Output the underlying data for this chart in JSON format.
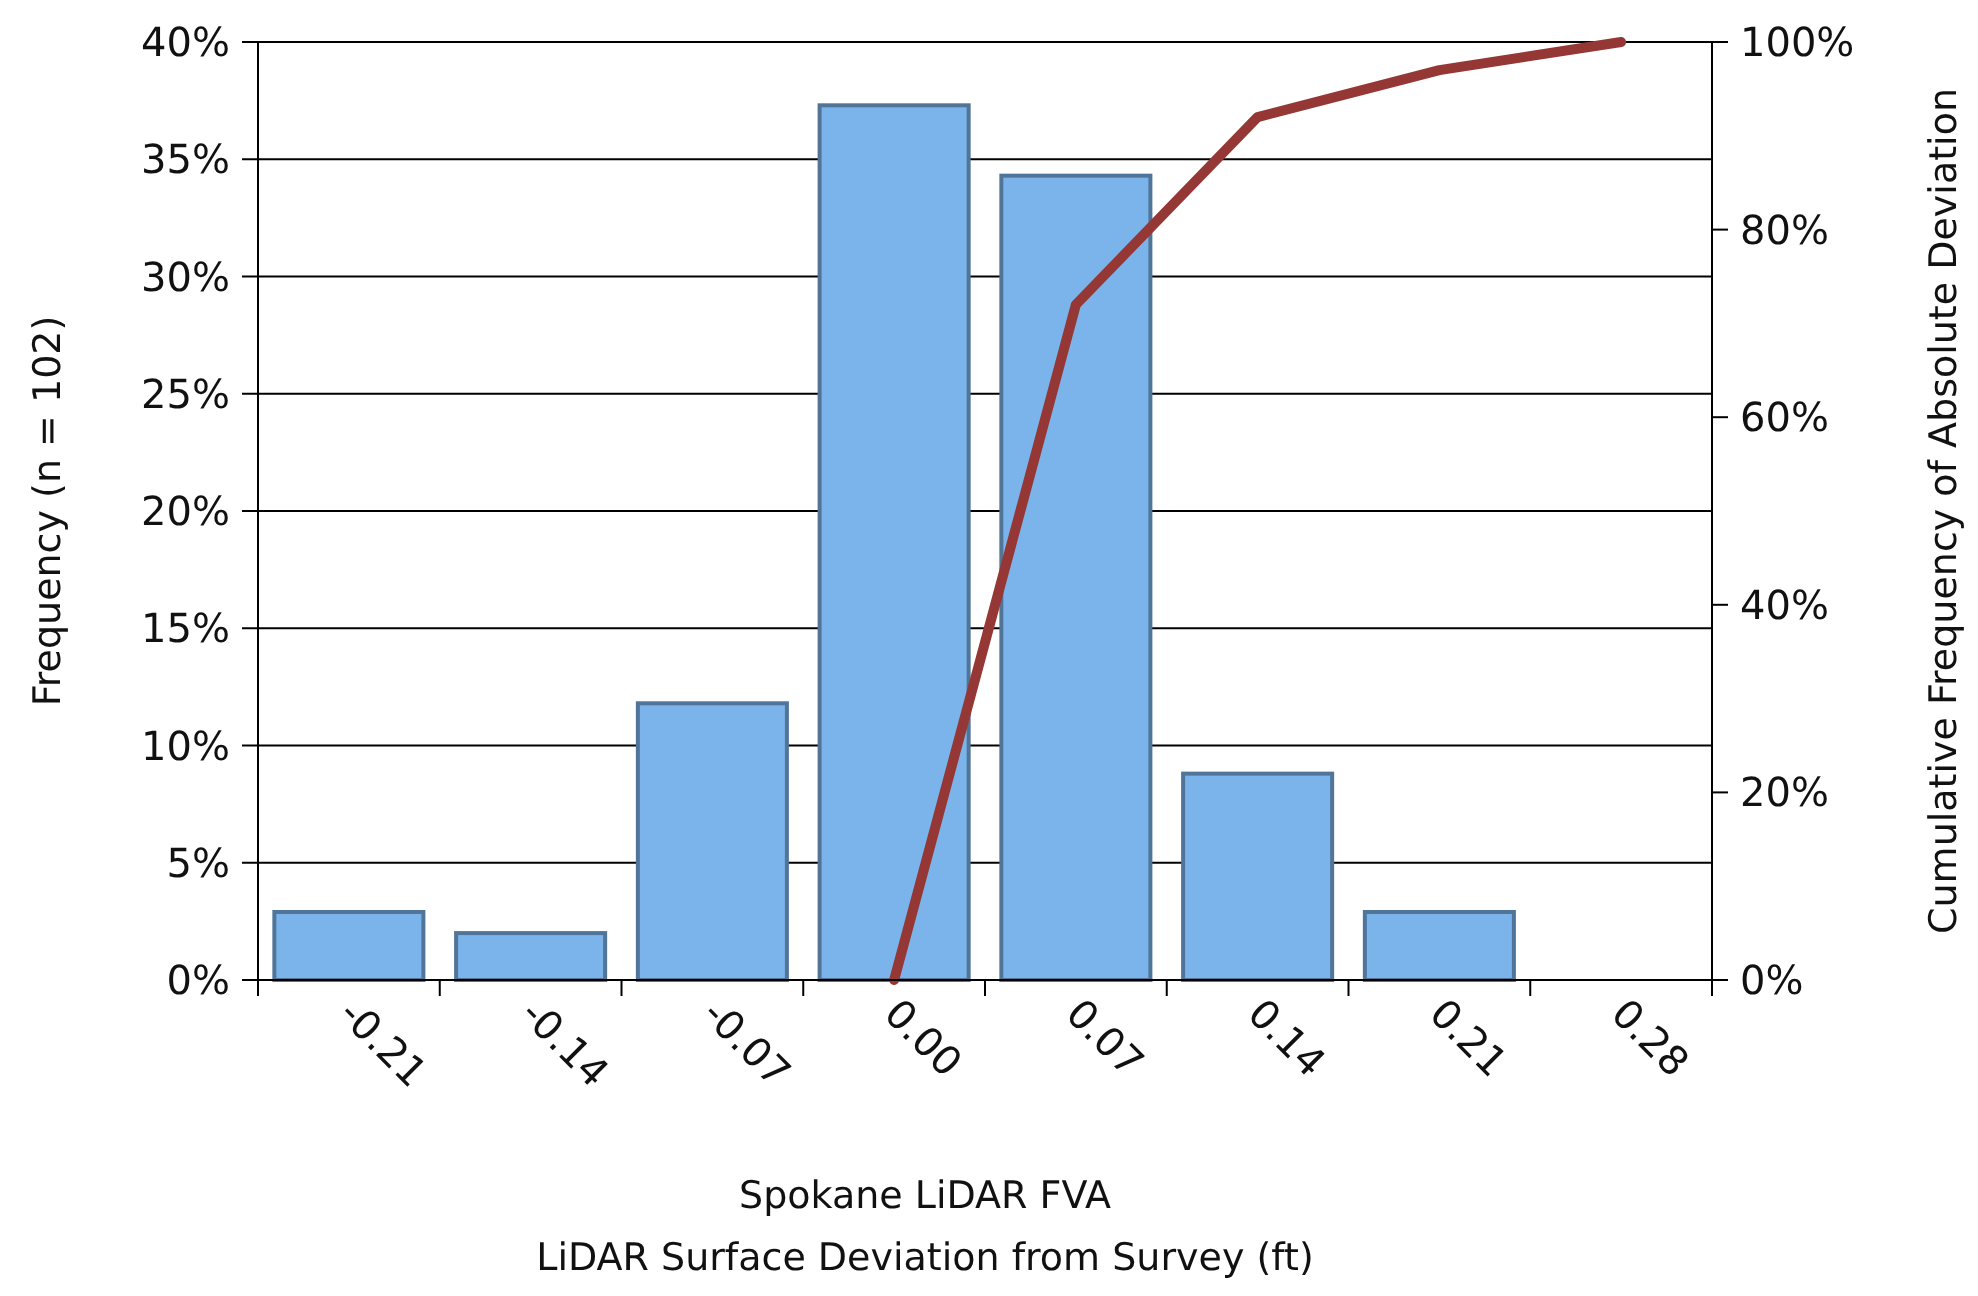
{
  "chart_data": {
    "type": "bar",
    "categories": [
      "-0.21",
      "-0.14",
      "-0.07",
      "0.00",
      "0.07",
      "0.14",
      "0.21",
      "0.28"
    ],
    "xlabel": "Spokane LiDAR FVA\nLiDAR Surface Deviation from Survey (ft)",
    "ylabel": "Frequency (n = 102)",
    "y2label": "Cumulative Frequency of Absolute Deviation",
    "series": [
      {
        "color": "#7ab4ea",
        "values": [
          2.9,
          2.0,
          11.8,
          37.3,
          34.3,
          8.8,
          2.9,
          null
        ]
      },
      {
        "type": "line",
        "axis": "y2",
        "color": "#953735",
        "values": [
          null,
          null,
          null,
          0,
          72,
          92,
          97,
          100
        ]
      }
    ],
    "ylim": [
      0,
      40
    ],
    "yticks": [
      {
        "value": 0,
        "label": "0%"
      },
      {
        "value": 5,
        "label": "5%"
      },
      {
        "value": 10,
        "label": "10%"
      },
      {
        "value": 15,
        "label": "15%"
      },
      {
        "value": 20,
        "label": "20%"
      },
      {
        "value": 25,
        "label": "25%"
      },
      {
        "value": 30,
        "label": "30%"
      },
      {
        "value": 35,
        "label": "35%"
      },
      {
        "value": 40,
        "label": "40%"
      }
    ],
    "y2lim": [
      0,
      100
    ],
    "y2ticks": [
      {
        "value": 0,
        "label": "0%"
      },
      {
        "value": 20,
        "label": "20%"
      },
      {
        "value": 40,
        "label": "40%"
      },
      {
        "value": 60,
        "label": "60%"
      },
      {
        "value": 80,
        "label": "80%"
      },
      {
        "value": 100,
        "label": "100%"
      }
    ],
    "grid": "y",
    "marker": "none",
    "line_style": "solid"
  }
}
